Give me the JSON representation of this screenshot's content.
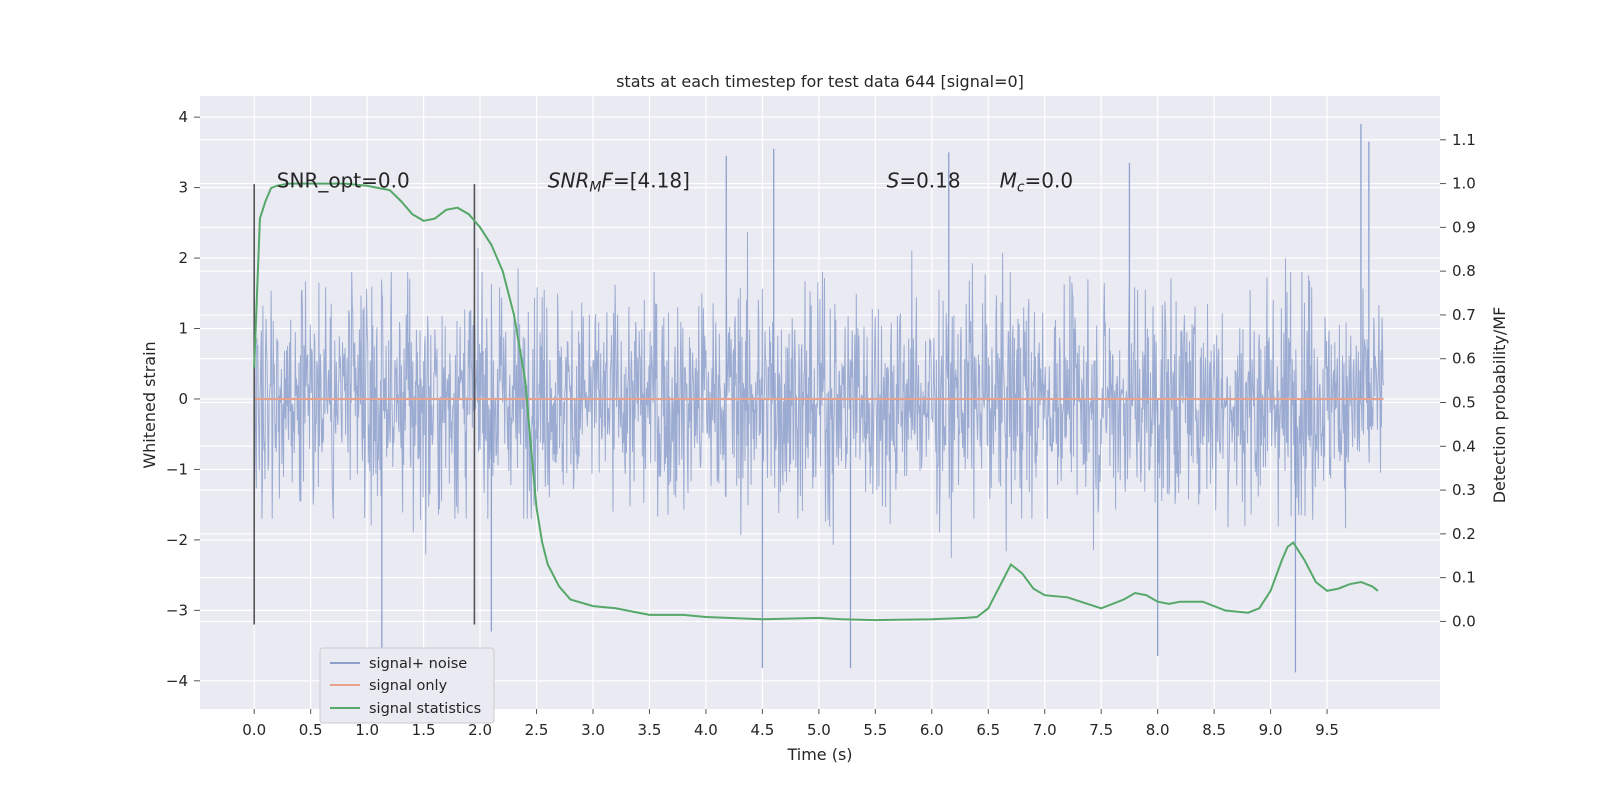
{
  "chart_data": {
    "type": "line",
    "title": "stats at each timestep for test data 644 [signal=0]",
    "xlabel": "Time (s)",
    "ylabel_left": "Whitened strain",
    "ylabel_right": "Detection probability/MF",
    "xlim": [
      -0.48,
      10.5
    ],
    "ylim_left": [
      -4.4,
      4.3
    ],
    "ylim_right": [
      -0.2,
      1.2
    ],
    "x_ticks": [
      0.0,
      0.5,
      1.0,
      1.5,
      2.0,
      2.5,
      3.0,
      3.5,
      4.0,
      4.5,
      5.0,
      5.5,
      6.0,
      6.5,
      7.0,
      7.5,
      8.0,
      8.5,
      9.0,
      9.5
    ],
    "x_tick_labels": [
      "0.0",
      "0.5",
      "1.0",
      "1.5",
      "2.0",
      "2.5",
      "3.0",
      "3.5",
      "4.0",
      "4.5",
      "5.0",
      "5.5",
      "6.0",
      "6.5",
      "7.0",
      "7.5",
      "8.0",
      "8.5",
      "9.0",
      "9.5"
    ],
    "y_left_ticks": [
      -4,
      -3,
      -2,
      -1,
      0,
      1,
      2,
      3,
      4
    ],
    "y_left_tick_labels": [
      "−4",
      "−3",
      "−2",
      "−1",
      "0",
      "1",
      "2",
      "3",
      "4"
    ],
    "y_right_ticks": [
      0.0,
      0.1,
      0.2,
      0.3,
      0.4,
      0.5,
      0.6,
      0.7,
      0.8,
      0.9,
      1.0,
      1.1
    ],
    "y_right_tick_labels": [
      "0.0",
      "0.1",
      "0.2",
      "0.3",
      "0.4",
      "0.5",
      "0.6",
      "0.7",
      "0.8",
      "0.9",
      "1.0",
      "1.1"
    ],
    "grid": true,
    "legend_position": "lower-left",
    "series": [
      {
        "name": "signal+ noise",
        "axis": "left",
        "color": "#8da0cb",
        "style": "noise",
        "x_range": [
          0.0,
          10.0
        ],
        "typical_envelope": [
          -1.7,
          1.8
        ],
        "extremes": [
          {
            "x": 1.13,
            "y": -3.55
          },
          {
            "x": 2.1,
            "y": -3.3
          },
          {
            "x": 4.5,
            "y": -3.82
          },
          {
            "x": 5.28,
            "y": -3.82
          },
          {
            "x": 8.0,
            "y": -3.65
          },
          {
            "x": 9.22,
            "y": -3.88
          },
          {
            "x": 9.8,
            "y": 3.9
          },
          {
            "x": 9.87,
            "y": 3.65
          },
          {
            "x": 4.6,
            "y": 3.55
          },
          {
            "x": 4.18,
            "y": 3.45
          },
          {
            "x": 6.15,
            "y": 3.5
          },
          {
            "x": 7.75,
            "y": 3.35
          }
        ]
      },
      {
        "name": "signal only",
        "axis": "left",
        "color": "#e8a18a",
        "x": [
          0.0,
          10.0
        ],
        "y": [
          0.0,
          0.0
        ]
      },
      {
        "name": "signal statistics",
        "axis": "right",
        "color": "#55a868",
        "x": [
          0.0,
          0.05,
          0.1,
          0.15,
          0.2,
          0.3,
          0.5,
          0.8,
          1.0,
          1.1,
          1.2,
          1.3,
          1.4,
          1.5,
          1.6,
          1.7,
          1.8,
          1.9,
          2.0,
          2.1,
          2.2,
          2.3,
          2.4,
          2.45,
          2.5,
          2.55,
          2.6,
          2.7,
          2.8,
          3.0,
          3.2,
          3.5,
          3.8,
          4.0,
          4.5,
          5.0,
          5.2,
          5.5,
          6.0,
          6.3,
          6.4,
          6.5,
          6.6,
          6.7,
          6.8,
          6.9,
          7.0,
          7.2,
          7.5,
          7.7,
          7.8,
          7.9,
          8.0,
          8.1,
          8.2,
          8.4,
          8.6,
          8.8,
          8.9,
          9.0,
          9.1,
          9.15,
          9.2,
          9.3,
          9.4,
          9.5,
          9.6,
          9.7,
          9.8,
          9.9,
          9.95
        ],
        "y": [
          0.58,
          0.92,
          0.96,
          0.99,
          0.995,
          1.0,
          1.0,
          1.0,
          0.995,
          0.99,
          0.985,
          0.96,
          0.93,
          0.915,
          0.92,
          0.94,
          0.945,
          0.93,
          0.9,
          0.86,
          0.8,
          0.7,
          0.55,
          0.4,
          0.26,
          0.18,
          0.13,
          0.08,
          0.05,
          0.035,
          0.03,
          0.015,
          0.015,
          0.01,
          0.005,
          0.008,
          0.005,
          0.003,
          0.005,
          0.008,
          0.01,
          0.03,
          0.08,
          0.13,
          0.11,
          0.075,
          0.06,
          0.055,
          0.03,
          0.05,
          0.065,
          0.06,
          0.045,
          0.04,
          0.045,
          0.045,
          0.025,
          0.02,
          0.03,
          0.07,
          0.14,
          0.17,
          0.18,
          0.14,
          0.09,
          0.07,
          0.075,
          0.085,
          0.09,
          0.08,
          0.07
        ]
      }
    ],
    "vertical_lines": [
      {
        "x": 0.0,
        "y_range": [
          -3.2,
          3.05
        ]
      },
      {
        "x": 1.95,
        "y_range": [
          -3.2,
          3.05
        ]
      }
    ],
    "annotations": [
      {
        "text": "SNR_opt=0.0",
        "x": 0.2,
        "y": 3.1
      },
      {
        "text": "SNR_MF=[4.18]",
        "x": 2.6,
        "y": 3.1
      },
      {
        "text": "S=0.18",
        "x": 5.6,
        "y": 3.1
      },
      {
        "text": "M_c=0.0",
        "x": 6.6,
        "y": 3.1
      }
    ]
  }
}
